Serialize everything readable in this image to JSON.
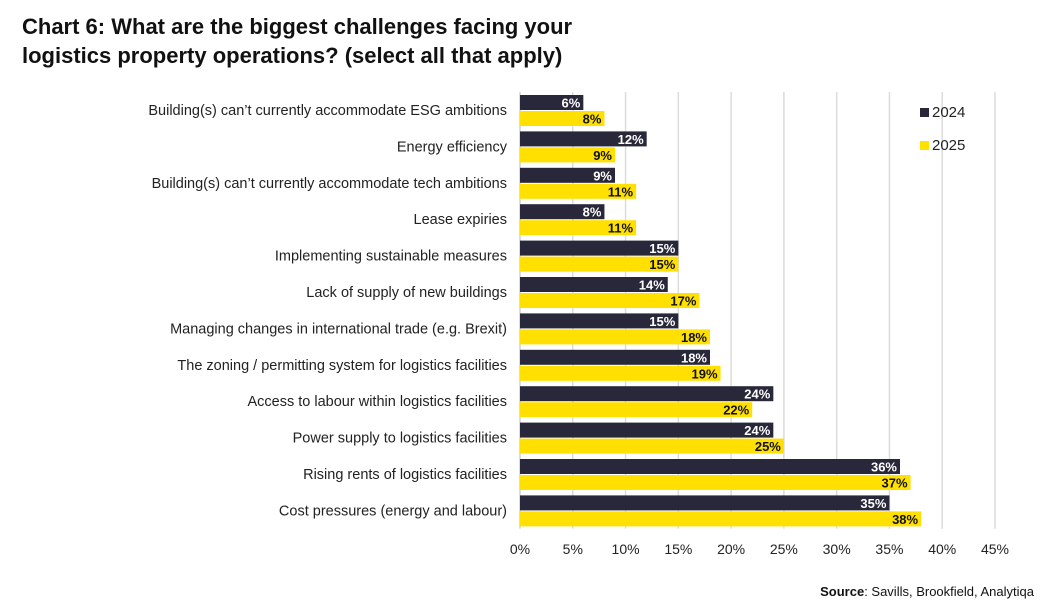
{
  "chart_data": {
    "type": "bar",
    "orientation": "horizontal",
    "title": "Chart 6: What are the biggest challenges facing your logistics property operations? (select all that apply)",
    "categories": [
      "Building(s) can’t currently accommodate ESG ambitions",
      "Energy efficiency",
      "Building(s) can’t currently accommodate tech ambitions",
      "Lease expiries",
      "Implementing sustainable measures",
      "Lack of supply of new buildings",
      "Managing changes in international trade (e.g. Brexit)",
      "The zoning / permitting system for logistics facilities",
      "Access to labour within logistics facilities",
      "Power supply to logistics facilities",
      "Rising rents of logistics facilities",
      "Cost pressures (energy and labour)"
    ],
    "series": [
      {
        "name": "2024",
        "color": "#28283a",
        "label_color": "#ffffff",
        "values": [
          6,
          12,
          9,
          8,
          15,
          14,
          15,
          18,
          24,
          24,
          36,
          35
        ]
      },
      {
        "name": "2025",
        "color": "#ffe000",
        "label_color": "#111111",
        "values": [
          8,
          9,
          11,
          11,
          15,
          17,
          18,
          19,
          22,
          25,
          37,
          38
        ]
      }
    ],
    "xlim": [
      0,
      45
    ],
    "xticks": [
      0,
      5,
      10,
      15,
      20,
      25,
      30,
      35,
      40,
      45
    ],
    "tick_suffix": "%",
    "grid": true,
    "legend": "top-right"
  },
  "source": {
    "label": "Source",
    "text": ": Savills, Brookfield, Analytiqa"
  }
}
